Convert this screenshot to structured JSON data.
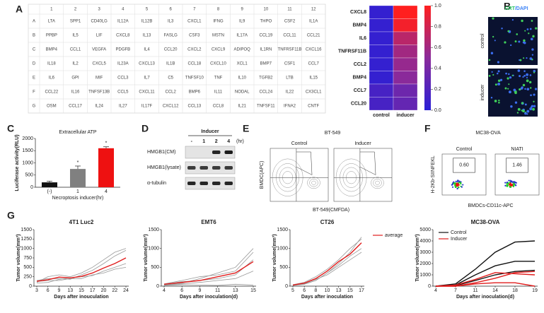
{
  "panel_labels": [
    "A",
    "B",
    "C",
    "D",
    "E",
    "F",
    "G"
  ],
  "table": {
    "columns": [
      "1",
      "2",
      "3",
      "4",
      "5",
      "6",
      "7",
      "8",
      "9",
      "10",
      "11",
      "12"
    ],
    "row_labels": [
      "A",
      "B",
      "C",
      "D",
      "E",
      "F",
      "G"
    ],
    "cells": [
      [
        "LTA",
        "SPP1",
        "CD40LG",
        "IL12A",
        "IL12B",
        "IL3",
        "CXCL1",
        "IFNG",
        "IL9",
        "THPO",
        "CSF2",
        "IL1A"
      ],
      [
        "PPBP",
        "IL5",
        "LIF",
        "CXCL8",
        "IL13",
        "FASLG",
        "CSF3",
        "MSTN",
        "IL17A",
        "CCL19",
        "CCL11",
        "CCL21"
      ],
      [
        "BMP4",
        "CCL1",
        "VEGFA",
        "PDGFB",
        "IL4",
        "CCL20",
        "CXCL2",
        "CXCL9",
        "ADIPOQ",
        "IL1RN",
        "TNFRSF11B",
        "CXCL16"
      ],
      [
        "IL18",
        "IL2",
        "CXCL5",
        "IL23A",
        "CXCL13",
        "IL1B",
        "CCL18",
        "CXCL10",
        "XCL1",
        "BMP7",
        "CSF1",
        "CCL7"
      ],
      [
        "IL6",
        "GPI",
        "MIF",
        "CCL3",
        "IL7",
        "C5",
        "TNFSF10",
        "TNF",
        "IL10",
        "TGFB2",
        "LTB",
        "IL15"
      ],
      [
        "CCL22",
        "IL16",
        "TNFSF13B",
        "CCL5",
        "CXCL11",
        "CCL2",
        "BMP6",
        "IL11",
        "NODAL",
        "CCL24",
        "IL22",
        "CX3CL1"
      ],
      [
        "OSM",
        "CCL17",
        "IL24",
        "IL27",
        "IL17F",
        "CXCL12",
        "CCL13",
        "CCL8",
        "IL21",
        "TNFSF11",
        "IFNA2",
        "CNTF"
      ]
    ]
  },
  "images_B": {
    "title_parts": [
      "CRT",
      "/DAPI"
    ],
    "title_colors": [
      "#22c55e",
      "#3b82f6"
    ],
    "conditions": [
      "control",
      "inducer"
    ]
  },
  "blot_D": {
    "title": "Inducer",
    "unit": "(hr)",
    "lanes": [
      "-",
      "1",
      "2",
      "4"
    ],
    "rows": [
      "HMGB1(CM)",
      "HMGB1(lysate)",
      "α-tubulin"
    ]
  },
  "flow_E": {
    "title": "BT-549",
    "conditions": [
      "Control",
      "Inducer"
    ],
    "y_label": "BMDC(APC)",
    "x_label": "BT-549(CMFDA)"
  },
  "flow_F": {
    "title": "MC38-OVA",
    "conditions": [
      "Control",
      "NIATI"
    ],
    "gate_values": [
      "0.60",
      "1.46"
    ],
    "y_label": "H-2Kb-SIINFEKL",
    "x_label": "BMDCs-CD11c-APC"
  },
  "chart_data": [
    {
      "type": "heatmap",
      "categories": [
        "control",
        "inducer"
      ],
      "rows": [
        "CXCL8",
        "BMP4",
        "IL6",
        "TNFRSF11B",
        "CCL2",
        "BMP4",
        "CCL7",
        "CCL20"
      ],
      "values": [
        [
          0.05,
          1.0
        ],
        [
          0.05,
          0.95
        ],
        [
          0.05,
          0.7
        ],
        [
          0.05,
          0.6
        ],
        [
          0.05,
          0.55
        ],
        [
          0.05,
          0.5
        ],
        [
          0.15,
          0.35
        ],
        [
          0.15,
          0.3
        ]
      ],
      "zlim": [
        0,
        1
      ],
      "colorbar_ticks": [
        {
          "value": 0,
          "label": "0.0"
        },
        0.2,
        0.4,
        0.6,
        0.8,
        {
          "value": 1,
          "label": "1.0"
        }
      ],
      "colormap": [
        "#2a1fd6",
        "#8a2a9a",
        "#ff1f1f"
      ]
    },
    {
      "type": "bar",
      "title": "Extracellular ATP",
      "x_label": "Necroptosis inducer(hr)",
      "y_label": "Luciferase activity(RLU)",
      "categories": [
        "(-)",
        "1",
        "4"
      ],
      "values": [
        200,
        750,
        1600
      ],
      "errors": [
        50,
        120,
        60
      ],
      "colors": [
        "#111111",
        "#808080",
        "#ee1111"
      ],
      "annotations": [
        null,
        "*",
        "*"
      ],
      "ylim": [
        0,
        2000
      ],
      "yticks": [
        0,
        500,
        1000,
        1500,
        2000
      ]
    },
    {
      "type": "line",
      "title": "4T1 Luc2",
      "x_label": "Days after inouculation",
      "y_label": "Tumor volume(mm³)",
      "categories": [
        "3",
        "6",
        "9",
        "13",
        "15",
        "17",
        "20",
        "22",
        "24"
      ],
      "ylim": [
        0,
        1500
      ],
      "yticks": [
        0,
        250,
        500,
        750,
        1000,
        1250,
        1500
      ],
      "series": [
        {
          "color": "#999999",
          "values": [
            150,
            200,
            200,
            180,
            300,
            420,
            600,
            800,
            950
          ]
        },
        {
          "color": "#999999",
          "values": [
            100,
            250,
            300,
            250,
            350,
            500,
            700,
            900,
            1000
          ]
        },
        {
          "color": "#999999",
          "values": [
            120,
            150,
            150,
            200,
            200,
            300,
            350,
            450,
            500
          ]
        },
        {
          "color": "#999999",
          "values": [
            80,
            100,
            180,
            220,
            250,
            280,
            400,
            500,
            600
          ]
        },
        {
          "color": "#e11d1d",
          "values": [
            130,
            170,
            240,
            220,
            260,
            350,
            480,
            600,
            750
          ]
        }
      ]
    },
    {
      "type": "line",
      "title": "EMT6",
      "x_label": "Days after inoculation(d)",
      "y_label": "Tumor volume(mm³)",
      "categories": [
        "4",
        "6",
        "9",
        "11",
        "13",
        "15"
      ],
      "ylim": [
        0,
        1500
      ],
      "yticks": [
        0,
        500,
        1000,
        1500
      ],
      "series": [
        {
          "color": "#999999",
          "values": [
            40,
            80,
            200,
            350,
            500,
            1000
          ]
        },
        {
          "color": "#999999",
          "values": [
            60,
            150,
            250,
            300,
            400,
            900
          ]
        },
        {
          "color": "#999999",
          "values": [
            30,
            60,
            100,
            150,
            200,
            400
          ]
        },
        {
          "color": "#999999",
          "values": [
            50,
            120,
            150,
            200,
            300,
            700
          ]
        },
        {
          "color": "#999999",
          "values": [
            20,
            40,
            30,
            20,
            50,
            30
          ]
        },
        {
          "color": "#e11d1d",
          "values": [
            50,
            100,
            150,
            250,
            350,
            650
          ]
        }
      ]
    },
    {
      "type": "line",
      "title": "CT26",
      "x_label": "Days after inoculation",
      "y_label": "Tumor volume(mm³)",
      "categories": [
        "5",
        "6",
        "8",
        "10",
        "13",
        "15",
        "17"
      ],
      "ylim": [
        0,
        1500
      ],
      "yticks": [
        0,
        500,
        1000,
        1500
      ],
      "series": [
        {
          "color": "#999999",
          "values": [
            20,
            60,
            150,
            350,
            600,
            900,
            1300
          ]
        },
        {
          "color": "#999999",
          "values": [
            40,
            100,
            250,
            450,
            700,
            1000,
            1250
          ]
        },
        {
          "color": "#999999",
          "values": [
            30,
            70,
            180,
            300,
            500,
            700,
            900
          ]
        },
        {
          "color": "#999999",
          "values": [
            20,
            50,
            150,
            350,
            550,
            800,
            1000
          ]
        },
        {
          "name": "average",
          "color": "#e11d1d",
          "values": [
            30,
            80,
            200,
            400,
            650,
            850,
            1150
          ]
        }
      ]
    },
    {
      "type": "line",
      "title": "MC38-OVA",
      "x_label": "Days after inoculation(d)",
      "y_label": "Tumor volume(mm³)",
      "categories": [
        "4",
        "7",
        "11",
        "14",
        "18",
        "19"
      ],
      "ylim": [
        0,
        5000
      ],
      "yticks": [
        0,
        1000,
        2000,
        3000,
        4000,
        5000
      ],
      "legend": "upper left",
      "series": [
        {
          "name": "Control",
          "color": "#111111",
          "values": [
            0,
            200,
            1500,
            3000,
            3900,
            4000
          ]
        },
        {
          "color": "#111111",
          "values": [
            0,
            100,
            1000,
            1800,
            2200,
            2200
          ]
        },
        {
          "color": "#111111",
          "values": [
            0,
            50,
            500,
            1000,
            1300,
            1400
          ]
        },
        {
          "name": "Inducer",
          "color": "#e11d1d",
          "values": [
            0,
            100,
            600,
            1200,
            1100,
            1000
          ]
        },
        {
          "color": "#e11d1d",
          "values": [
            0,
            0,
            300,
            700,
            1200,
            1300
          ]
        },
        {
          "color": "#e11d1d",
          "values": [
            0,
            0,
            200,
            300,
            300,
            0
          ]
        }
      ]
    }
  ]
}
